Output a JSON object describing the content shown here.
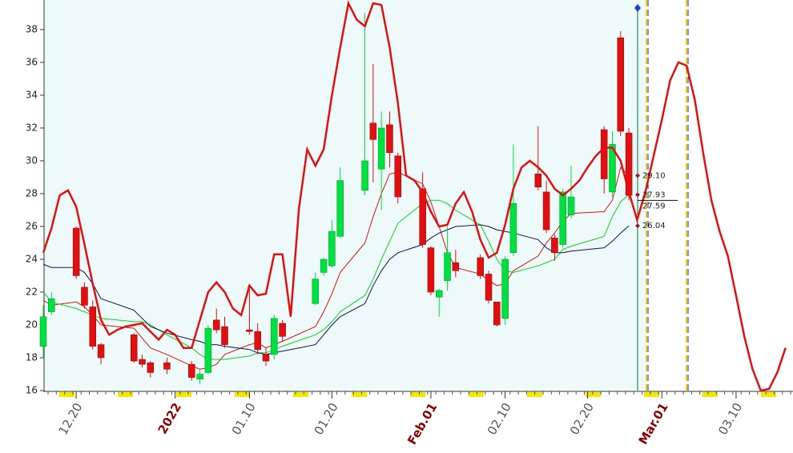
{
  "chart_data": {
    "type": "candlestick",
    "ylim": [
      16,
      39.8
    ],
    "yticks": [
      16,
      18,
      20,
      22,
      24,
      26,
      28,
      30,
      32,
      34,
      36,
      38
    ],
    "xlim": [
      -3.9,
      86.9
    ],
    "xticks": [
      {
        "value": 0,
        "label": "12.20",
        "color": "#555555"
      },
      {
        "value": 12,
        "label": "2022",
        "color": "#8b0000"
      },
      {
        "value": 21,
        "label": "01.10",
        "color": "#555555"
      },
      {
        "value": 31,
        "label": "01.20",
        "color": "#555555"
      },
      {
        "value": 43,
        "label": "Feb.01",
        "color": "#8b0000"
      },
      {
        "value": 52,
        "label": "02.10",
        "color": "#555555"
      },
      {
        "value": 62,
        "label": "02.20",
        "color": "#555555"
      },
      {
        "value": 71,
        "label": "Mar.01",
        "color": "#8b0000"
      },
      {
        "value": 80,
        "label": "03.10",
        "color": "#555555"
      }
    ],
    "up_color": "#00e040",
    "down_color": "#e01010",
    "candles": {
      "x": [
        -4,
        -3,
        0,
        1,
        2,
        3,
        7,
        8,
        9,
        11,
        14,
        15,
        16,
        17,
        18,
        21,
        22,
        23,
        24,
        25,
        29,
        30,
        31,
        32,
        35,
        36,
        37,
        38,
        39,
        42,
        43,
        44,
        45,
        46,
        49,
        50,
        51,
        52,
        53,
        56,
        57,
        58,
        59,
        60,
        64,
        65,
        66,
        67
      ],
      "open": [
        18.7,
        20.8,
        25.9,
        22.3,
        21.1,
        18.8,
        19.4,
        17.9,
        17.7,
        17.7,
        17.6,
        16.7,
        17.1,
        20.3,
        19.9,
        19.7,
        19.6,
        18.2,
        18.2,
        20.1,
        21.3,
        23.2,
        23.6,
        25.4,
        28.2,
        32.3,
        29.5,
        32.2,
        30.3,
        28.3,
        24.7,
        21.7,
        22.7,
        23.8,
        24.1,
        23.1,
        21.4,
        20.4,
        24.4,
        29.2,
        28.1,
        25.3,
        24.9,
        26.7,
        31.9,
        28.1,
        37.5,
        31.7
      ],
      "high": [
        21.2,
        22.0,
        26.0,
        22.6,
        21.5,
        18.9,
        19.5,
        18.2,
        17.8,
        18.0,
        17.8,
        17.3,
        20.0,
        21.0,
        20.5,
        22.2,
        20.1,
        18.6,
        20.6,
        20.3,
        23.2,
        24.1,
        26.4,
        29.6,
        39.0,
        35.9,
        33.0,
        33.0,
        30.5,
        29.3,
        24.8,
        22.2,
        26.0,
        24.6,
        24.3,
        23.3,
        21.4,
        24.2,
        31.0,
        32.1,
        28.8,
        25.5,
        28.3,
        29.7,
        32.1,
        31.8,
        37.9,
        32.0
      ],
      "low": [
        18.0,
        20.6,
        22.8,
        21.0,
        18.5,
        17.6,
        17.7,
        17.4,
        16.8,
        17.0,
        16.6,
        16.4,
        17.0,
        19.5,
        18.6,
        19.4,
        18.2,
        17.5,
        17.9,
        19.0,
        21.2,
        23.0,
        23.5,
        25.3,
        27.9,
        28.7,
        27.0,
        29.6,
        27.4,
        24.7,
        21.8,
        20.5,
        22.1,
        22.9,
        22.8,
        21.3,
        19.9,
        20.0,
        24.2,
        28.2,
        25.6,
        23.9,
        24.7,
        26.5,
        28.0,
        27.8,
        31.5,
        27.6
      ],
      "close": [
        20.5,
        21.6,
        23.0,
        21.2,
        18.7,
        18.0,
        17.8,
        17.6,
        17.1,
        17.3,
        16.8,
        17.0,
        19.8,
        19.7,
        18.8,
        19.6,
        18.5,
        17.8,
        20.4,
        19.3,
        22.8,
        24.0,
        25.7,
        28.8,
        30.0,
        31.3,
        32.0,
        30.5,
        27.8,
        24.9,
        22.0,
        22.1,
        24.4,
        23.3,
        23.0,
        21.5,
        20.0,
        24.0,
        27.4,
        28.4,
        25.8,
        24.4,
        28.1,
        27.8,
        28.9,
        31.0,
        31.8,
        27.9
      ]
    },
    "lines": [
      {
        "color": "#e01010",
        "width": 2.5,
        "x": [
          -4,
          -3,
          -2,
          -1,
          0,
          1,
          2,
          3,
          4,
          5,
          6,
          7,
          8,
          9,
          10,
          11,
          12,
          13,
          14,
          15,
          16,
          17,
          18,
          19,
          20,
          21,
          22,
          23,
          24,
          25,
          26,
          27,
          28,
          29,
          30,
          31,
          32,
          33,
          34,
          35,
          36,
          37,
          38,
          39,
          40,
          41,
          42,
          43,
          44,
          45,
          46,
          47,
          48,
          49,
          50,
          51,
          52,
          53,
          54,
          55,
          56,
          57,
          58,
          59,
          60,
          61,
          62,
          63,
          64,
          65,
          66,
          67,
          68,
          69,
          70,
          71,
          72,
          73,
          74,
          75,
          76,
          77,
          78,
          79,
          80,
          81,
          82,
          83,
          84,
          85,
          86
        ],
        "values": [
          24.4,
          25.9,
          27.9,
          28.2,
          27.2,
          24.9,
          22.5,
          20.3,
          19.4,
          19.7,
          19.9,
          20.0,
          20.1,
          19.6,
          19.1,
          19.7,
          19.4,
          18.6,
          18.6,
          20.3,
          22.0,
          22.6,
          22.0,
          21.0,
          20.6,
          22.4,
          21.8,
          21.9,
          24.3,
          24.3,
          20.5,
          27.1,
          30.7,
          29.7,
          30.7,
          34.0,
          36.9,
          39.6,
          38.6,
          38.2,
          39.6,
          39.5,
          36.9,
          33.5,
          29.1,
          28.8,
          28.1,
          26.9,
          26.0,
          26.1,
          27.4,
          28.1,
          26.9,
          25.2,
          24.1,
          24.4,
          26.1,
          28.3,
          29.6,
          30.0,
          29.6,
          29.1,
          28.3,
          27.9,
          28.3,
          28.8,
          29.6,
          30.3,
          30.8,
          30.8,
          30.0,
          28.1,
          26.4,
          28.1,
          30.3,
          32.5,
          34.9,
          36.0,
          35.8,
          33.7,
          30.5,
          27.6,
          25.7,
          24.2,
          21.8,
          19.3,
          17.3,
          16.0,
          16.1,
          17.1,
          18.6
        ]
      },
      {
        "color": "#e01010",
        "width": 1,
        "x": [
          -4,
          -3,
          0,
          1,
          2,
          3,
          7,
          8,
          9,
          11,
          14,
          15,
          16,
          17,
          18,
          21,
          22,
          23,
          24,
          25,
          29,
          30,
          31,
          32,
          35,
          36,
          37,
          38,
          39,
          42,
          43,
          44,
          45,
          46,
          49,
          50,
          51,
          52,
          53,
          56,
          57,
          58,
          59,
          60,
          64,
          65,
          66,
          67
        ],
        "values": [
          21.5,
          21.2,
          21.4,
          21.1,
          20.6,
          20.0,
          19.8,
          19.2,
          18.6,
          18.2,
          17.5,
          17.3,
          17.4,
          17.6,
          18.2,
          18.8,
          18.9,
          18.6,
          18.8,
          19.0,
          19.9,
          20.8,
          21.9,
          23.2,
          25.0,
          26.6,
          28.0,
          29.2,
          29.3,
          28.6,
          27.5,
          26.0,
          24.4,
          23.5,
          23.1,
          22.7,
          22.4,
          22.5,
          23.3,
          24.2,
          25.0,
          25.6,
          26.3,
          26.8,
          26.9,
          27.6,
          29.6,
          29.1
        ]
      },
      {
        "color": "#10d020",
        "width": 1,
        "x": [
          -4,
          -3,
          0,
          1,
          2,
          3,
          7,
          8,
          9,
          11,
          14,
          15,
          16,
          17,
          18,
          21,
          22,
          23,
          24,
          25,
          29,
          30,
          31,
          32,
          35,
          36,
          37,
          38,
          39,
          42,
          43,
          44,
          45,
          46,
          49,
          50,
          51,
          52,
          53,
          56,
          57,
          58,
          59,
          60,
          64,
          65,
          66,
          67
        ],
        "values": [
          22.0,
          21.4,
          21.0,
          20.8,
          20.6,
          20.4,
          20.2,
          20.2,
          20.0,
          19.4,
          18.6,
          18.2,
          17.9,
          17.9,
          17.9,
          18.1,
          18.3,
          18.3,
          18.5,
          18.7,
          19.4,
          19.7,
          20.2,
          20.8,
          21.8,
          22.8,
          24.0,
          25.1,
          26.2,
          27.4,
          27.6,
          27.6,
          27.4,
          27.0,
          26.1,
          25.1,
          24.0,
          23.3,
          23.2,
          23.6,
          23.8,
          24.0,
          24.6,
          24.8,
          25.4,
          26.6,
          27.5,
          27.93
        ]
      },
      {
        "color": "#101050",
        "width": 1,
        "x": [
          -4,
          -3,
          0,
          1,
          2,
          3,
          7,
          8,
          9,
          11,
          14,
          15,
          16,
          17,
          18,
          21,
          22,
          23,
          24,
          25,
          29,
          30,
          31,
          32,
          35,
          36,
          37,
          38,
          39,
          42,
          43,
          44,
          45,
          46,
          49,
          50,
          51,
          52,
          53,
          56,
          57,
          58,
          59,
          60,
          64,
          65,
          66,
          67
        ],
        "values": [
          23.7,
          23.5,
          23.5,
          23.2,
          22.5,
          21.6,
          20.9,
          20.4,
          19.9,
          19.5,
          19.1,
          19.0,
          18.8,
          18.8,
          18.7,
          18.5,
          18.3,
          18.2,
          18.3,
          18.4,
          18.8,
          19.4,
          20.0,
          20.5,
          21.3,
          22.4,
          23.3,
          24.0,
          24.4,
          24.9,
          25.3,
          25.6,
          25.8,
          26.0,
          26.1,
          26.0,
          25.8,
          25.7,
          25.6,
          25.2,
          24.7,
          24.4,
          24.4,
          24.5,
          24.7,
          25.1,
          25.6,
          26.04
        ]
      }
    ],
    "value_labels": [
      {
        "value": 29.1,
        "label": "29.10"
      },
      {
        "value": 27.93,
        "label": "27.93"
      },
      {
        "value": 27.59,
        "label": "27.59"
      },
      {
        "value": 26.04,
        "label": "26.04"
      }
    ]
  }
}
